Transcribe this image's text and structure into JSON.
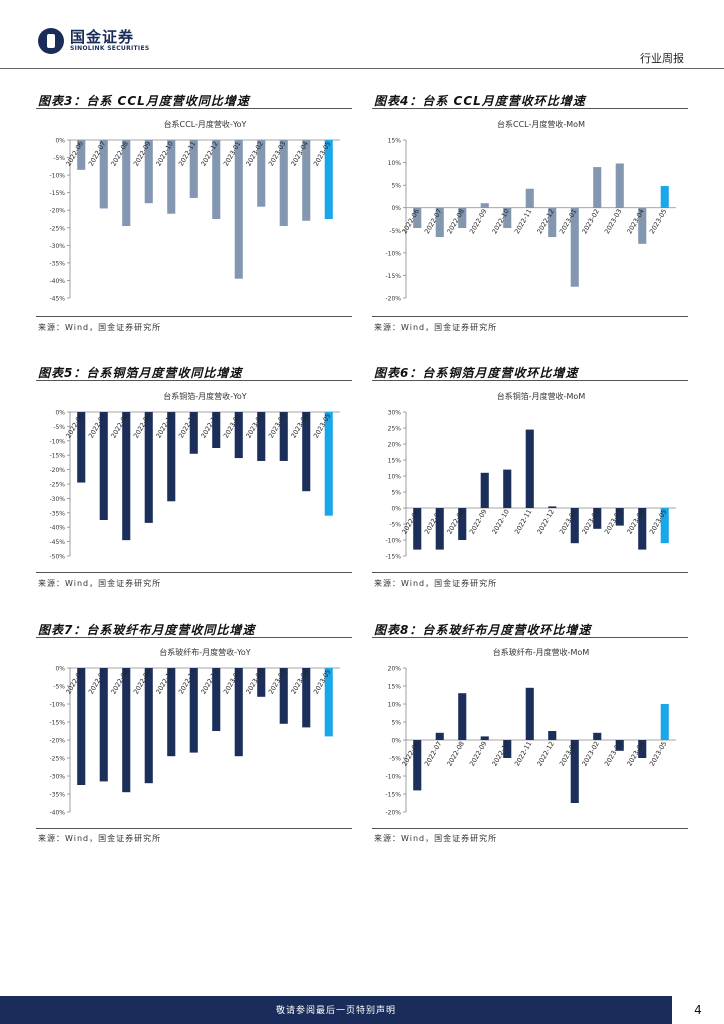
{
  "header": {
    "brand_cn": "国金证券",
    "brand_en": "SINOLINK SECURITIES",
    "report_type": "行业周报"
  },
  "colors": {
    "navy": "#1c2f5b",
    "gray_blue": "#8497b0",
    "highlight": "#1aa7e8"
  },
  "figures": [
    {
      "title": "图表3：台系 CCL月度营收同比增速",
      "source": "来源：Wind，国金证券研究所"
    },
    {
      "title": "图表4：台系 CCL月度营收环比增速",
      "source": "来源：Wind，国金证券研究所"
    },
    {
      "title": "图表5：台系铜箔月度营收同比增速",
      "source": "来源：Wind，国金证券研究所"
    },
    {
      "title": "图表6：台系铜箔月度营收环比增速",
      "source": "来源：Wind，国金证券研究所"
    },
    {
      "title": "图表7：台系玻纤布月度营收同比增速",
      "source": "来源：Wind，国金证券研究所"
    },
    {
      "title": "图表8：台系玻纤布月度营收环比增速",
      "source": "来源：Wind，国金证券研究所"
    }
  ],
  "chart_data": [
    {
      "type": "bar",
      "title": "台系CCL-月度营收-YoY",
      "ylim": [
        -45,
        0
      ],
      "ystep": 5,
      "categories": [
        "2022-06",
        "2022-07",
        "2022-08",
        "2022-09",
        "2022-10",
        "2022-11",
        "2022-12",
        "2023-01",
        "2023-02",
        "2023-03",
        "2023-04",
        "2023-05"
      ],
      "values": [
        -8.5,
        -19.5,
        -24.5,
        -18,
        -21,
        -16.5,
        -22.5,
        -39.5,
        -19,
        -24.5,
        -23,
        -22.5
      ],
      "colors": [
        "gray_blue",
        "gray_blue",
        "gray_blue",
        "gray_blue",
        "gray_blue",
        "gray_blue",
        "gray_blue",
        "gray_blue",
        "gray_blue",
        "gray_blue",
        "gray_blue",
        "highlight"
      ]
    },
    {
      "type": "bar",
      "title": "台系CCL-月度营收-MoM",
      "ylim": [
        -20,
        15
      ],
      "ystep": 5,
      "categories": [
        "2022-06",
        "2022-07",
        "2022-08",
        "2022-09",
        "2022-10",
        "2022-11",
        "2022-12",
        "2023-01",
        "2023-02",
        "2023-03",
        "2023-04",
        "2023-05"
      ],
      "values": [
        -4.5,
        -6.5,
        -4.5,
        1,
        -4.5,
        4.2,
        -6.5,
        -17.5,
        9,
        9.8,
        -8,
        4.8
      ],
      "colors": [
        "gray_blue",
        "gray_blue",
        "gray_blue",
        "gray_blue",
        "gray_blue",
        "gray_blue",
        "gray_blue",
        "gray_blue",
        "gray_blue",
        "gray_blue",
        "gray_blue",
        "highlight"
      ]
    },
    {
      "type": "bar",
      "title": "台系铜箔-月度营收-YoY",
      "ylim": [
        -50,
        0
      ],
      "ystep": 5,
      "categories": [
        "2022-06",
        "2022-07",
        "2022-08",
        "2022-09",
        "2022-10",
        "2022-11",
        "2022-12",
        "2023-01",
        "2023-02",
        "2023-03",
        "2023-04",
        "2023-05"
      ],
      "values": [
        -24.5,
        -37.5,
        -44.5,
        -38.5,
        -31,
        -14.5,
        -12.5,
        -16,
        -17,
        -17,
        -27.5,
        -36
      ],
      "colors": [
        "navy",
        "navy",
        "navy",
        "navy",
        "navy",
        "navy",
        "navy",
        "navy",
        "navy",
        "navy",
        "navy",
        "highlight"
      ]
    },
    {
      "type": "bar",
      "title": "台系铜箔-月度营收-MoM",
      "ylim": [
        -15,
        30
      ],
      "ystep": 5,
      "categories": [
        "2022-06",
        "2022-07",
        "2022-08",
        "2022-09",
        "2022-10",
        "2022-11",
        "2022-12",
        "2023-01",
        "2023-02",
        "2023-03",
        "2023-04",
        "2023-05"
      ],
      "values": [
        -13,
        -13,
        -10,
        11,
        12,
        24.5,
        0.5,
        -11,
        -6.5,
        -5.5,
        -13,
        -11
      ],
      "colors": [
        "navy",
        "navy",
        "navy",
        "navy",
        "navy",
        "navy",
        "navy",
        "navy",
        "navy",
        "navy",
        "navy",
        "highlight"
      ]
    },
    {
      "type": "bar",
      "title": "台系玻纤布-月度营收-YoY",
      "ylim": [
        -40,
        0
      ],
      "ystep": 5,
      "categories": [
        "2022-06",
        "2022-07",
        "2022-08",
        "2022-09",
        "2022-10",
        "2022-11",
        "2022-12",
        "2023-01",
        "2023-02",
        "2023-03",
        "2023-04",
        "2023-05"
      ],
      "values": [
        -32.5,
        -31.5,
        -34.5,
        -32,
        -24.5,
        -23.5,
        -17.5,
        -24.5,
        -8,
        -15.5,
        -16.5,
        -19
      ],
      "colors": [
        "navy",
        "navy",
        "navy",
        "navy",
        "navy",
        "navy",
        "navy",
        "navy",
        "navy",
        "navy",
        "navy",
        "highlight"
      ]
    },
    {
      "type": "bar",
      "title": "台系玻纤布-月度营收-MoM",
      "ylim": [
        -20,
        20
      ],
      "ystep": 5,
      "categories": [
        "2022-06",
        "2022-07",
        "2022-08",
        "2022-09",
        "2022-10",
        "2022-11",
        "2022-12",
        "2023-01",
        "2023-02",
        "2023-03",
        "2023-04",
        "2023-05"
      ],
      "values": [
        -14,
        2,
        13,
        1,
        -5,
        14.5,
        2.5,
        -17.5,
        2,
        -3,
        -5,
        10
      ],
      "colors": [
        "navy",
        "navy",
        "navy",
        "navy",
        "navy",
        "navy",
        "navy",
        "navy",
        "navy",
        "navy",
        "navy",
        "highlight"
      ]
    }
  ],
  "footer": {
    "disclaimer": "敬请参阅最后一页特别声明",
    "page": "4"
  }
}
